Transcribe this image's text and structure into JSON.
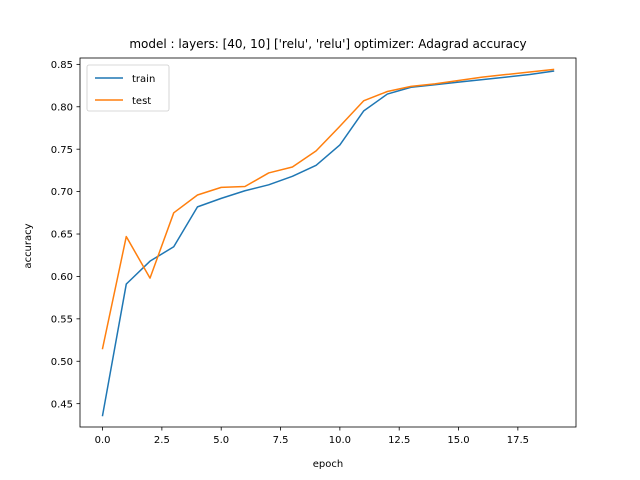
{
  "chart_data": {
    "type": "line",
    "title": "model : layers: [40, 10] ['relu', 'relu'] optimizer: Adagrad accuracy",
    "xlabel": "epoch",
    "ylabel": "accuracy",
    "xlim": [
      -0.95,
      19.95
    ],
    "ylim": [
      0.4225,
      0.8575
    ],
    "x_ticks": [
      0.0,
      2.5,
      5.0,
      7.5,
      10.0,
      12.5,
      15.0,
      17.5
    ],
    "x_tick_labels": [
      "0.0",
      "2.5",
      "5.0",
      "7.5",
      "10.0",
      "12.5",
      "15.0",
      "17.5"
    ],
    "y_ticks": [
      0.45,
      0.5,
      0.55,
      0.6,
      0.65,
      0.7,
      0.75,
      0.8,
      0.85
    ],
    "y_tick_labels": [
      "0.45",
      "0.50",
      "0.55",
      "0.60",
      "0.65",
      "0.70",
      "0.75",
      "0.80",
      "0.85"
    ],
    "grid": false,
    "legend_position": "upper-left",
    "x": [
      0,
      1,
      2,
      3,
      4,
      5,
      6,
      7,
      8,
      9,
      10,
      11,
      12,
      13,
      14,
      15,
      16,
      17,
      18,
      19
    ],
    "series": [
      {
        "name": "train",
        "color": "#1f77b4",
        "values": [
          0.436,
          0.591,
          0.618,
          0.635,
          0.682,
          0.692,
          0.701,
          0.708,
          0.718,
          0.731,
          0.755,
          0.795,
          0.815,
          0.823,
          0.826,
          0.829,
          0.832,
          0.835,
          0.838,
          0.842
        ]
      },
      {
        "name": "test",
        "color": "#ff7f0e",
        "values": [
          0.515,
          0.647,
          0.598,
          0.675,
          0.696,
          0.705,
          0.706,
          0.722,
          0.729,
          0.748,
          0.777,
          0.807,
          0.818,
          0.824,
          0.827,
          0.831,
          0.835,
          0.838,
          0.841,
          0.844
        ]
      }
    ]
  }
}
